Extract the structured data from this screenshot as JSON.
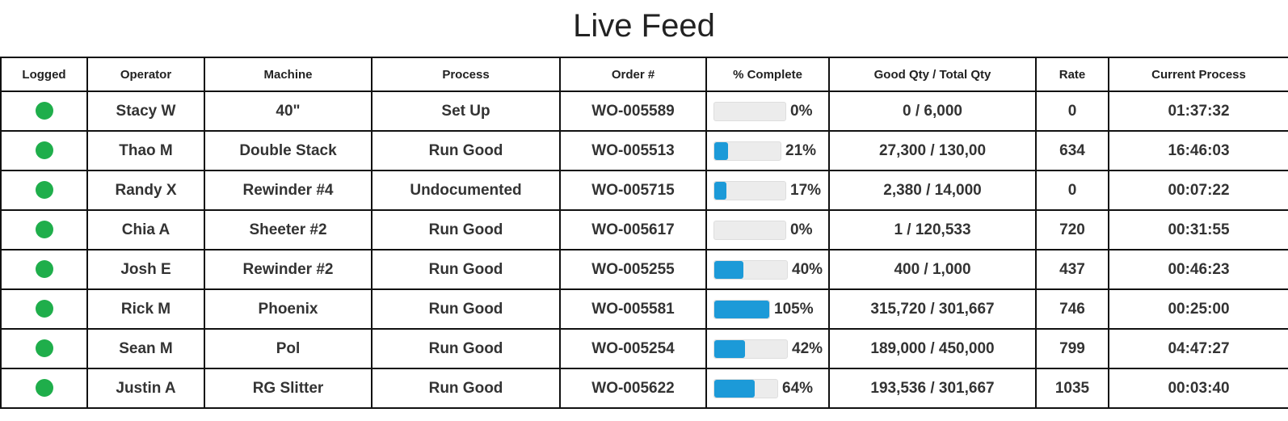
{
  "title": "Live Feed",
  "headers": [
    "Logged",
    "Operator",
    "Machine",
    "Process",
    "Order #",
    "% Complete",
    "Good Qty / Total Qty",
    "Rate",
    "Current Process"
  ],
  "rows": [
    {
      "logged": true,
      "operator": "Stacy W",
      "machine": "40\"",
      "process": "Set Up",
      "order": "WO-005589",
      "percent": 0,
      "percent_label": "0%",
      "qty": "0 / 6,000",
      "rate": "0",
      "current": "01:37:32"
    },
    {
      "logged": true,
      "operator": "Thao M",
      "machine": "Double Stack",
      "process": "Run Good",
      "order": "WO-005513",
      "percent": 21,
      "percent_label": "21%",
      "qty": "27,300 / 130,00",
      "rate": "634",
      "current": "16:46:03"
    },
    {
      "logged": true,
      "operator": "Randy X",
      "machine": "Rewinder #4",
      "process": "Undocumented",
      "order": "WO-005715",
      "percent": 17,
      "percent_label": "17%",
      "qty": "2,380 / 14,000",
      "rate": "0",
      "current": "00:07:22"
    },
    {
      "logged": true,
      "operator": "Chia A",
      "machine": "Sheeter #2",
      "process": "Run Good",
      "order": "WO-005617",
      "percent": 0,
      "percent_label": "0%",
      "qty": "1 / 120,533",
      "rate": "720",
      "current": "00:31:55"
    },
    {
      "logged": true,
      "operator": "Josh E",
      "machine": "Rewinder #2",
      "process": "Run Good",
      "order": "WO-005255",
      "percent": 40,
      "percent_label": "40%",
      "qty": "400 / 1,000",
      "rate": "437",
      "current": "00:46:23"
    },
    {
      "logged": true,
      "operator": "Rick M",
      "machine": "Phoenix",
      "process": "Run Good",
      "order": "WO-005581",
      "percent": 105,
      "percent_label": "105%",
      "qty": "315,720 / 301,667",
      "rate": "746",
      "current": "00:25:00"
    },
    {
      "logged": true,
      "operator": "Sean M",
      "machine": "Pol",
      "process": "Run Good",
      "order": "WO-005254",
      "percent": 42,
      "percent_label": "42%",
      "qty": "189,000 / 450,000",
      "rate": "799",
      "current": "04:47:27"
    },
    {
      "logged": true,
      "operator": "Justin A",
      "machine": "RG Slitter",
      "process": "Run Good",
      "order": "WO-005622",
      "percent": 64,
      "percent_label": "64%",
      "qty": "193,536 / 301,667",
      "rate": "1035",
      "current": "00:03:40"
    }
  ],
  "colors": {
    "logged_dot": "#1fae4b",
    "progress_fill": "#1c9ad8",
    "progress_track": "#ececec"
  },
  "icons": {
    "logged": "status-dot-icon"
  }
}
